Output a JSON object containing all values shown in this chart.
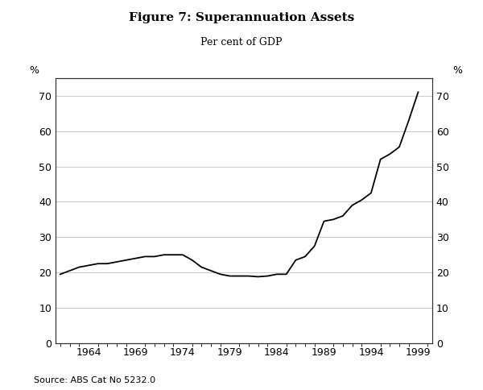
{
  "title": "Figure 7: Superannuation Assets",
  "subtitle": "Per cent of GDP",
  "source": "Source: ABS Cat No 5232.0",
  "ylabel_left": "%",
  "ylabel_right": "%",
  "ylim": [
    0,
    75
  ],
  "yticks": [
    0,
    10,
    20,
    30,
    40,
    50,
    60,
    70
  ],
  "xlim": [
    1960.5,
    2000.5
  ],
  "xticks": [
    1964,
    1969,
    1974,
    1979,
    1984,
    1989,
    1994,
    1999
  ],
  "background_color": "#ffffff",
  "plot_bg_color": "#ffffff",
  "grid_color": "#cccccc",
  "line_color": "#000000",
  "line_width": 1.3,
  "years": [
    1961,
    1962,
    1963,
    1964,
    1965,
    1966,
    1967,
    1968,
    1969,
    1970,
    1971,
    1972,
    1973,
    1974,
    1975,
    1976,
    1977,
    1978,
    1979,
    1980,
    1981,
    1982,
    1983,
    1984,
    1985,
    1986,
    1987,
    1988,
    1989,
    1990,
    1991,
    1992,
    1993,
    1994,
    1995,
    1996,
    1997,
    1998,
    1999
  ],
  "values": [
    19.5,
    20.5,
    21.5,
    22.0,
    22.5,
    22.5,
    23.0,
    23.5,
    24.0,
    24.5,
    24.5,
    25.0,
    25.0,
    25.0,
    23.5,
    21.5,
    20.5,
    19.5,
    19.0,
    19.0,
    19.0,
    18.8,
    19.0,
    19.5,
    19.5,
    23.5,
    24.5,
    27.5,
    34.5,
    35.0,
    36.0,
    39.0,
    40.5,
    42.5,
    52.0,
    53.5,
    55.5,
    63.0,
    71.0
  ]
}
